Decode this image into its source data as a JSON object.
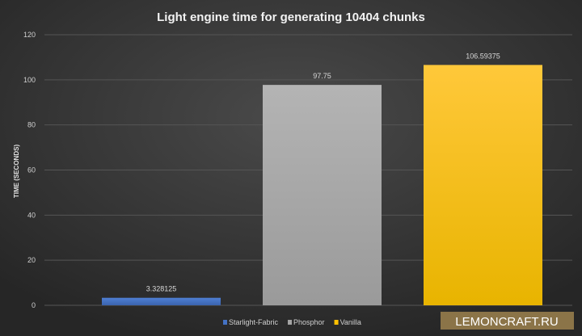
{
  "chart_data": {
    "type": "bar",
    "title": "Light engine time for generating 10404 chunks",
    "xlabel": "",
    "ylabel": "TIME (SECONDS)",
    "ylim": [
      0,
      120
    ],
    "yticks": [
      0,
      20,
      40,
      60,
      80,
      100,
      120
    ],
    "grid": true,
    "legend_position": "bottom",
    "series": [
      {
        "name": "Starlight-Fabric",
        "values": [
          3.328125
        ],
        "label": "3.328125",
        "color": "#4472c4"
      },
      {
        "name": "Phosphor",
        "values": [
          97.75
        ],
        "label": "97.75",
        "color": "#a5a5a5"
      },
      {
        "name": "Vanilla",
        "values": [
          106.59375
        ],
        "label": "106.59375",
        "color": "#ffc000"
      }
    ]
  },
  "watermark": {
    "text": "LEMONCRAFT.RU",
    "color": "#8b7448"
  }
}
